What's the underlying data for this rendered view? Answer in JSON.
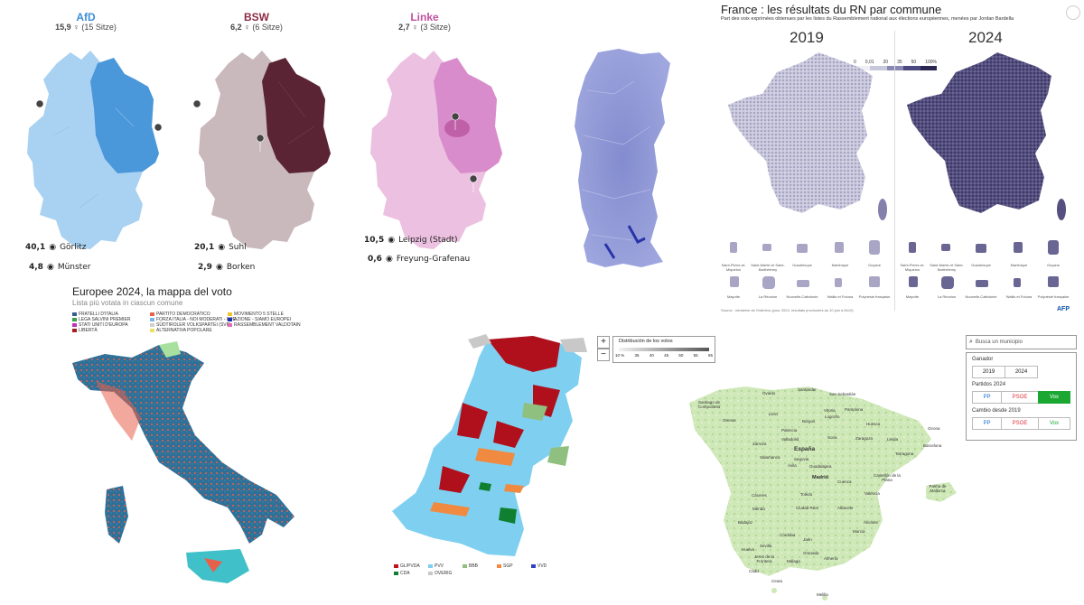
{
  "germany": [
    {
      "party": "AfD",
      "result": "15,9",
      "seats": "(15 Sitze)",
      "color": "#3d8fd6",
      "hi": {
        "value": "40,1",
        "place": "Görlitz"
      },
      "lo": {
        "value": "4,8",
        "place": "Münster"
      }
    },
    {
      "party": "BSW",
      "result": "6,2",
      "seats": "(6 Sitze)",
      "color": "#8b2a44",
      "hi": {
        "value": "20,1",
        "place": "Suhl"
      },
      "lo": {
        "value": "2,9",
        "place": "Borken"
      }
    },
    {
      "party": "Linke",
      "result": "2,7",
      "seats": "(3 Sitze)",
      "color": "#c050a0",
      "hi": {
        "value": "10,5",
        "place": "Leipzig (Stadt)"
      },
      "lo": {
        "value": "0,6",
        "place": "Freyung-Grafenau"
      }
    }
  ],
  "france": {
    "title": "France : les résultats du RN par commune",
    "subtitle": "Part des voix exprimées obtenues par les listes du Rassemblement national aux élections européennes, menées par Jordan Bardella",
    "year_left": "2019",
    "year_right": "2024",
    "scale": [
      "0",
      "0,01",
      "20",
      "35",
      "50",
      "100%"
    ],
    "territories_row1": [
      "Saint-Pierre-et-Miquelon",
      "Saint-Martin et Saint-Barthélemy",
      "Guadeloupe",
      "Martinique",
      "Guyane"
    ],
    "territories_row2": [
      "Mayotte",
      "La Réunion",
      "Nouvelle-Calédonie",
      "Wallis et Futuna",
      "Polynésie française"
    ],
    "source": "Source : ministère de l'Intérieur (pour 2024, résultats provisoires au 10 juin à 8h10)",
    "credit": "AFP"
  },
  "italy": {
    "title": "Europee 2024, la mappa del voto",
    "subtitle": "Lista più votata in ciascun comune",
    "legend": [
      {
        "label": "FRATELLI D'ITALIA",
        "color": "#2f5f8f"
      },
      {
        "label": "PARTITO DEMOCRATICO",
        "color": "#e8604a"
      },
      {
        "label": "MOVIMENTO 5 STELLE",
        "color": "#f2c230"
      },
      {
        "label": "LEGA SALVINI PREMIER",
        "color": "#3aa04a"
      },
      {
        "label": "FORZA ITALIA - NOI MODERATI - PPE",
        "color": "#7ab4e8"
      },
      {
        "label": "AZIONE - SIAMO EUROPEI",
        "color": "#2030b0"
      },
      {
        "label": "STATI UNITI D'EUROPA",
        "color": "#c030c0"
      },
      {
        "label": "SÜDTIROLER VOLKSPARTEI (SVP)",
        "color": "#d0d0d0"
      },
      {
        "label": "RASSEMBLEMENT VALDOTAIN",
        "color": "#e070b0"
      },
      {
        "label": "LIBERTÀ",
        "color": "#a02020"
      },
      {
        "label": "ALTERNATIVA POPOLARE",
        "color": "#f0e060"
      }
    ]
  },
  "netherlands": {
    "legend_title": "Distribución de los votos",
    "ticks": [
      "10 %",
      "35",
      "40",
      "45",
      "50",
      "55",
      "65"
    ],
    "zoom_in": "+",
    "zoom_out": "−",
    "parties": [
      {
        "label": "GL/PVDA",
        "color": "#c0101a"
      },
      {
        "label": "PVV",
        "color": "#7fd0f0"
      },
      {
        "label": "BBB",
        "color": "#90c080"
      },
      {
        "label": "SGP",
        "color": "#f08a40"
      },
      {
        "label": "VVD",
        "color": "#3040c0"
      },
      {
        "label": "CDA",
        "color": "#108030"
      },
      {
        "label": "OVERIG",
        "color": "#c8c8c8"
      }
    ]
  },
  "spain": {
    "search_placeholder": "Busca un municipio",
    "winner_label": "Ganador",
    "years": [
      "2019",
      "2024"
    ],
    "parties_label": "Partidos 2024",
    "parties": [
      "PP",
      "PSOE",
      "Vox"
    ],
    "change_label": "Cambio desde 2019",
    "change_parties": [
      "PP",
      "PSOE",
      "Vox"
    ],
    "country": "España",
    "cities": [
      "Oviedo",
      "Santander",
      "San Sebastián",
      "Santiago de Compostela",
      "León",
      "Vitoria",
      "Orense",
      "Burgos",
      "Logroño",
      "Pamplona",
      "Huesca",
      "Girona",
      "Zaragoza",
      "Lleida",
      "Barcelona",
      "Palencia",
      "Soria",
      "Valladolid",
      "Tarragona",
      "Zamora",
      "Segovia",
      "Salamanca",
      "Ávila",
      "Guadalajara",
      "Castellón de la Plana",
      "Madrid",
      "Cuenca",
      "Palma de Mallorca",
      "Valencia",
      "Cáceres",
      "Toledo",
      "Mérida",
      "Ciudad Real",
      "Albacete",
      "Alicante",
      "Badajoz",
      "Murcia",
      "Córdoba",
      "Huelva",
      "Sevilla",
      "Jaén",
      "Granada",
      "Almería",
      "Jerez de la Frontera",
      "Málaga",
      "Cádiz",
      "Ceuta",
      "Melilla"
    ]
  }
}
